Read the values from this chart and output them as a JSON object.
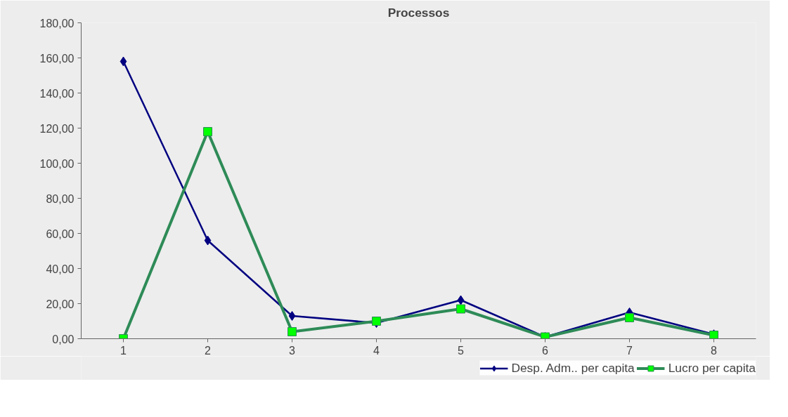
{
  "chart_data": {
    "type": "line",
    "title": "Processos",
    "categories": [
      "1",
      "2",
      "3",
      "4",
      "5",
      "6",
      "7",
      "8"
    ],
    "series": [
      {
        "name": "Desp. Adm.. per capita",
        "color": "#000080",
        "marker": "diamond",
        "values": [
          158,
          56,
          13,
          9,
          22,
          1,
          15,
          2.5
        ]
      },
      {
        "name": "Lucro per capita",
        "color": "#2e8b57",
        "marker": "square",
        "values": [
          0,
          118,
          4,
          10,
          17,
          1,
          12,
          2
        ]
      }
    ],
    "ylim": [
      0,
      180
    ],
    "yticks": [
      {
        "value": 0,
        "label": "0,00"
      },
      {
        "value": 20,
        "label": "20,00"
      },
      {
        "value": 40,
        "label": "40,00"
      },
      {
        "value": 60,
        "label": "60,00"
      },
      {
        "value": 80,
        "label": "80,00"
      },
      {
        "value": 100,
        "label": "100,00"
      },
      {
        "value": 120,
        "label": "120,00"
      },
      {
        "value": 140,
        "label": "140,00"
      },
      {
        "value": 160,
        "label": "160,00"
      },
      {
        "value": 180,
        "label": "180,00"
      }
    ],
    "grid": false,
    "legend": "bottom right",
    "line_style": "solid"
  }
}
